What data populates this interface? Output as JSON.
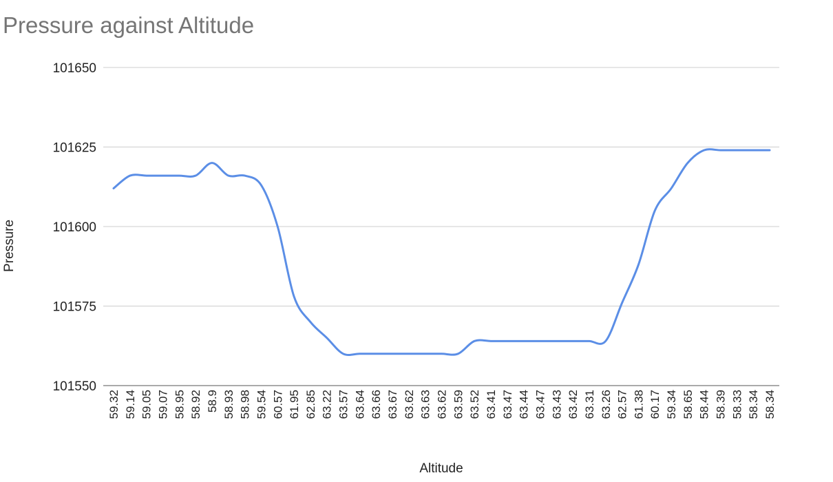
{
  "chart_data": {
    "type": "line",
    "title": "Pressure against Altitude",
    "xlabel": "Altitude",
    "ylabel": "Pressure",
    "ylim": [
      101550,
      101650
    ],
    "yticks": [
      101550,
      101575,
      101600,
      101625,
      101650
    ],
    "grid": true,
    "legend": "none",
    "categories": [
      "59.32",
      "59.14",
      "59.05",
      "59.07",
      "58.95",
      "58.92",
      "58.9",
      "58.93",
      "58.98",
      "59.54",
      "60.57",
      "61.95",
      "62.85",
      "63.22",
      "63.57",
      "63.64",
      "63.66",
      "63.67",
      "63.62",
      "63.63",
      "63.62",
      "63.59",
      "63.52",
      "63.41",
      "63.47",
      "63.44",
      "63.47",
      "63.43",
      "63.42",
      "63.31",
      "63.26",
      "62.57",
      "61.38",
      "60.17",
      "59.34",
      "58.65",
      "58.44",
      "58.39",
      "58.33",
      "58.34",
      "58.34"
    ],
    "series": [
      {
        "color": "#5b8ee6",
        "values": [
          101612,
          101616,
          101616,
          101616,
          101616,
          101616,
          101620,
          101616,
          101616,
          101613,
          101600,
          101578,
          101570,
          101565,
          101560,
          101560,
          101560,
          101560,
          101560,
          101560,
          101560,
          101560,
          101564,
          101564,
          101564,
          101564,
          101564,
          101564,
          101564,
          101564,
          101564,
          101576,
          101588,
          101605,
          101612,
          101620,
          101624,
          101624,
          101624,
          101624,
          101624
        ]
      }
    ]
  }
}
